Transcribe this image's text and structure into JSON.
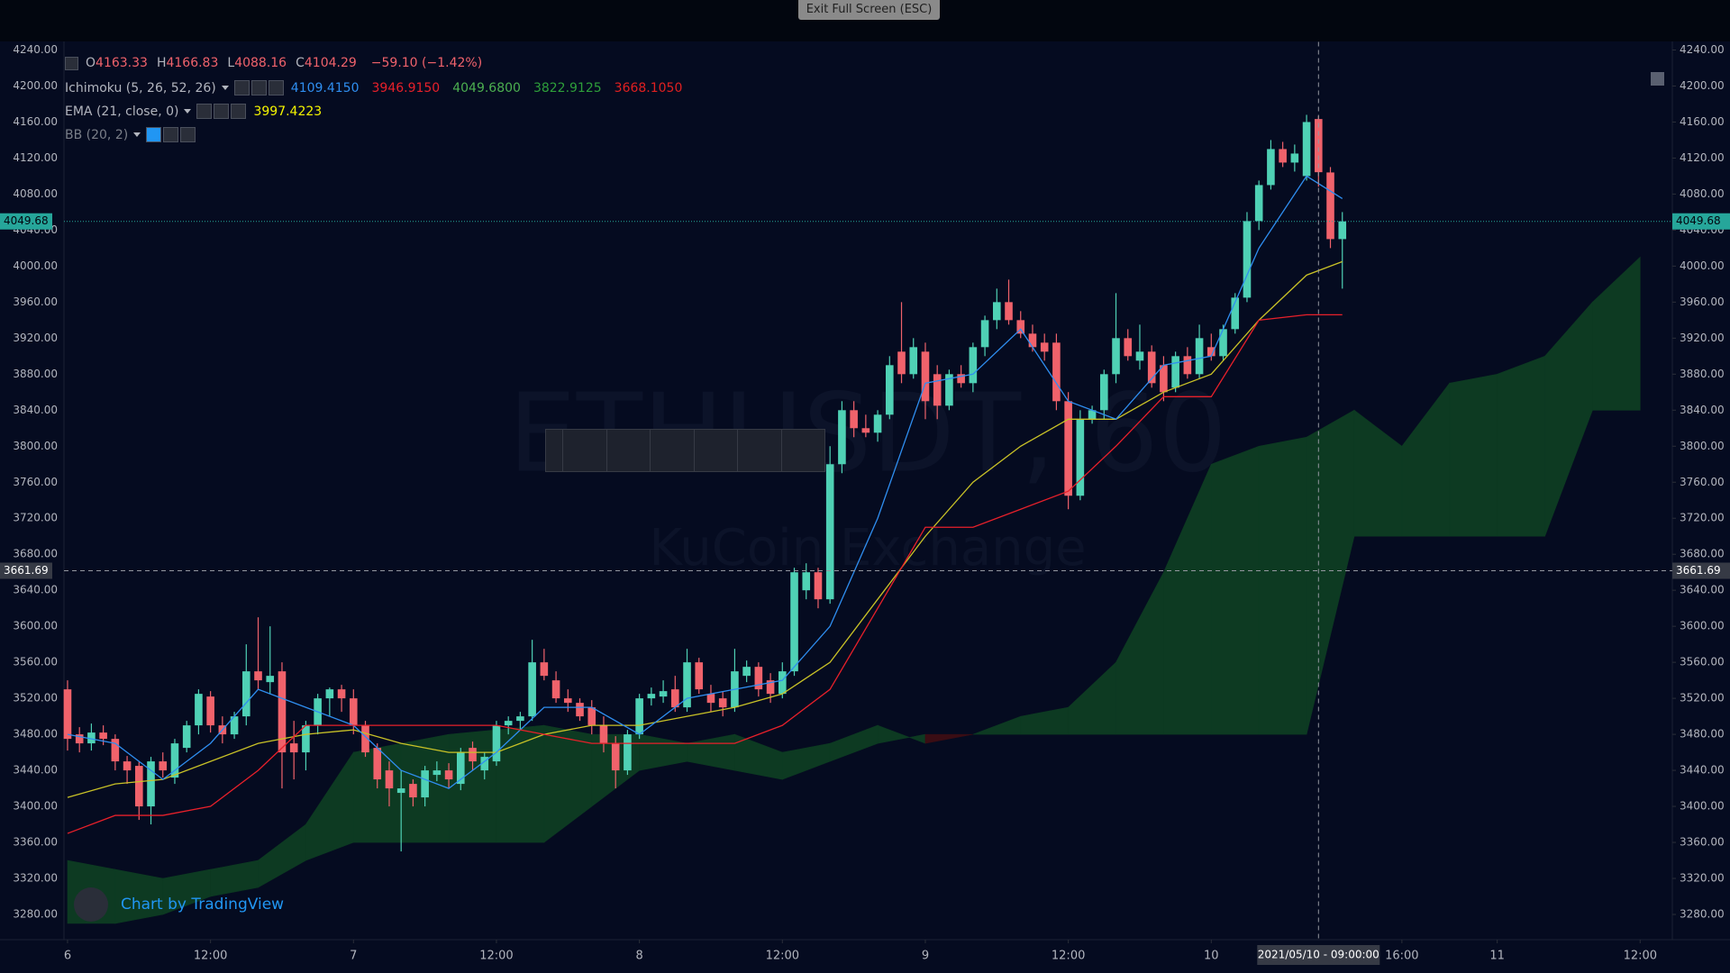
{
  "chart_data": {
    "type": "candlestick",
    "title": "ETHUSDT, 60",
    "subtitle": "KuCoin Exchange",
    "up_color": "#4fd1b5",
    "down_color": "#f0626b",
    "x": [
      0,
      1,
      2,
      3,
      4,
      5,
      6,
      7,
      8,
      9,
      10,
      11,
      12,
      13,
      14,
      15,
      16,
      17,
      18,
      19,
      20,
      21,
      22,
      23,
      24,
      25,
      26,
      27,
      28,
      29,
      30,
      31,
      32,
      33,
      34,
      35,
      36,
      37,
      38,
      39,
      40,
      41,
      42,
      43,
      44,
      45,
      46,
      47,
      48,
      49,
      50,
      51,
      52,
      53,
      54,
      55,
      56,
      57,
      58,
      59,
      60,
      61,
      62,
      63,
      64,
      65,
      66,
      67,
      68,
      69,
      70,
      71,
      72,
      73,
      74,
      75,
      76,
      77,
      78,
      79,
      80,
      81,
      82,
      83,
      84,
      85,
      86,
      87,
      88,
      89,
      90,
      91,
      92,
      93,
      94,
      95,
      96,
      97,
      98,
      99,
      100,
      101,
      102,
      103,
      104,
      105,
      106,
      107
    ],
    "ohlc": [
      [
        3530,
        3540,
        3462,
        3475
      ],
      [
        3480,
        3488,
        3460,
        3470
      ],
      [
        3470,
        3492,
        3462,
        3482
      ],
      [
        3482,
        3490,
        3468,
        3475
      ],
      [
        3475,
        3480,
        3440,
        3450
      ],
      [
        3450,
        3456,
        3425,
        3440
      ],
      [
        3445,
        3450,
        3385,
        3400
      ],
      [
        3400,
        3455,
        3380,
        3450
      ],
      [
        3450,
        3460,
        3432,
        3440
      ],
      [
        3432,
        3475,
        3425,
        3470
      ],
      [
        3465,
        3495,
        3460,
        3490
      ],
      [
        3490,
        3530,
        3480,
        3525
      ],
      [
        3522,
        3528,
        3482,
        3490
      ],
      [
        3490,
        3500,
        3470,
        3480
      ],
      [
        3480,
        3505,
        3475,
        3500
      ],
      [
        3500,
        3580,
        3490,
        3550
      ],
      [
        3550,
        3610,
        3530,
        3540
      ],
      [
        3538,
        3600,
        3525,
        3545
      ],
      [
        3550,
        3560,
        3420,
        3460
      ],
      [
        3470,
        3495,
        3430,
        3460
      ],
      [
        3460,
        3495,
        3440,
        3490
      ],
      [
        3490,
        3525,
        3480,
        3520
      ],
      [
        3520,
        3532,
        3500,
        3530
      ],
      [
        3530,
        3535,
        3505,
        3520
      ],
      [
        3520,
        3530,
        3480,
        3490
      ],
      [
        3490,
        3495,
        3455,
        3460
      ],
      [
        3465,
        3470,
        3420,
        3430
      ],
      [
        3440,
        3450,
        3400,
        3420
      ],
      [
        3415,
        3440,
        3350,
        3420
      ],
      [
        3425,
        3430,
        3400,
        3410
      ],
      [
        3410,
        3445,
        3400,
        3440
      ],
      [
        3435,
        3450,
        3428,
        3440
      ],
      [
        3440,
        3448,
        3420,
        3430
      ],
      [
        3425,
        3465,
        3418,
        3460
      ],
      [
        3465,
        3472,
        3440,
        3450
      ],
      [
        3440,
        3460,
        3430,
        3455
      ],
      [
        3450,
        3495,
        3445,
        3490
      ],
      [
        3490,
        3500,
        3480,
        3495
      ],
      [
        3495,
        3505,
        3485,
        3500
      ],
      [
        3500,
        3585,
        3495,
        3560
      ],
      [
        3560,
        3575,
        3540,
        3545
      ],
      [
        3540,
        3550,
        3515,
        3520
      ],
      [
        3520,
        3530,
        3505,
        3515
      ],
      [
        3515,
        3520,
        3495,
        3500
      ],
      [
        3510,
        3518,
        3480,
        3490
      ],
      [
        3490,
        3500,
        3460,
        3470
      ],
      [
        3470,
        3478,
        3420,
        3440
      ],
      [
        3440,
        3485,
        3435,
        3480
      ],
      [
        3480,
        3525,
        3475,
        3520
      ],
      [
        3520,
        3532,
        3512,
        3525
      ],
      [
        3522,
        3540,
        3515,
        3528
      ],
      [
        3530,
        3545,
        3505,
        3510
      ],
      [
        3510,
        3575,
        3505,
        3560
      ],
      [
        3560,
        3565,
        3525,
        3530
      ],
      [
        3525,
        3535,
        3505,
        3515
      ],
      [
        3520,
        3528,
        3500,
        3510
      ],
      [
        3510,
        3575,
        3505,
        3550
      ],
      [
        3545,
        3562,
        3538,
        3555
      ],
      [
        3555,
        3560,
        3522,
        3530
      ],
      [
        3540,
        3548,
        3515,
        3525
      ],
      [
        3525,
        3560,
        3520,
        3550
      ],
      [
        3550,
        3665,
        3545,
        3660
      ],
      [
        3640,
        3670,
        3630,
        3660
      ],
      [
        3660,
        3665,
        3620,
        3630
      ],
      [
        3630,
        3800,
        3625,
        3780
      ],
      [
        3780,
        3850,
        3770,
        3840
      ],
      [
        3840,
        3850,
        3810,
        3820
      ],
      [
        3820,
        3835,
        3810,
        3815
      ],
      [
        3815,
        3840,
        3805,
        3835
      ],
      [
        3835,
        3900,
        3830,
        3890
      ],
      [
        3905,
        3960,
        3870,
        3880
      ],
      [
        3880,
        3920,
        3875,
        3910
      ],
      [
        3905,
        3915,
        3830,
        3850
      ],
      [
        3880,
        3890,
        3830,
        3845
      ],
      [
        3845,
        3885,
        3840,
        3880
      ],
      [
        3880,
        3890,
        3865,
        3870
      ],
      [
        3870,
        3915,
        3860,
        3910
      ],
      [
        3910,
        3945,
        3900,
        3940
      ],
      [
        3940,
        3975,
        3930,
        3960
      ],
      [
        3960,
        3985,
        3935,
        3940
      ],
      [
        3940,
        3950,
        3920,
        3925
      ],
      [
        3925,
        3935,
        3905,
        3910
      ],
      [
        3915,
        3925,
        3895,
        3905
      ],
      [
        3915,
        3925,
        3840,
        3850
      ],
      [
        3850,
        3860,
        3730,
        3745
      ],
      [
        3745,
        3840,
        3740,
        3830
      ],
      [
        3830,
        3845,
        3825,
        3840
      ],
      [
        3840,
        3885,
        3830,
        3880
      ],
      [
        3880,
        3970,
        3870,
        3920
      ],
      [
        3920,
        3930,
        3895,
        3900
      ],
      [
        3895,
        3935,
        3885,
        3905
      ],
      [
        3905,
        3912,
        3865,
        3870
      ],
      [
        3890,
        3900,
        3850,
        3860
      ],
      [
        3865,
        3905,
        3860,
        3900
      ],
      [
        3900,
        3910,
        3875,
        3880
      ],
      [
        3880,
        3935,
        3875,
        3920
      ],
      [
        3910,
        3925,
        3895,
        3900
      ],
      [
        3900,
        3935,
        3895,
        3930
      ],
      [
        3930,
        3970,
        3925,
        3965
      ],
      [
        3965,
        4060,
        3960,
        4050
      ],
      [
        4050,
        4095,
        4040,
        4090
      ],
      [
        4090,
        4140,
        4085,
        4130
      ],
      [
        4130,
        4138,
        4110,
        4115
      ],
      [
        4115,
        4135,
        4105,
        4125
      ],
      [
        4100,
        4168,
        4095,
        4160
      ],
      [
        4163.33,
        4166.83,
        4088.16,
        4104.29
      ],
      [
        4104,
        4110,
        4020,
        4030
      ],
      [
        4030,
        4060,
        3975,
        4049.68
      ]
    ],
    "lines": {
      "x": [
        0,
        4,
        8,
        12,
        16,
        20,
        24,
        28,
        32,
        36,
        40,
        44,
        48,
        52,
        56,
        60,
        64,
        68,
        72,
        76,
        80,
        84,
        88,
        92,
        96,
        100,
        104,
        107
      ],
      "series": [
        {
          "color": "#c9c227",
          "values": [
            3410,
            3425,
            3430,
            3450,
            3470,
            3480,
            3485,
            3470,
            3460,
            3460,
            3480,
            3490,
            3490,
            3500,
            3510,
            3525,
            3560,
            3630,
            3700,
            3760,
            3800,
            3830,
            3830,
            3860,
            3880,
            3940,
            3990,
            4005
          ]
        },
        {
          "color": "#2f8ef0",
          "values": [
            3480,
            3470,
            3430,
            3470,
            3530,
            3510,
            3490,
            3440,
            3420,
            3460,
            3510,
            3510,
            3480,
            3520,
            3530,
            3540,
            3600,
            3720,
            3870,
            3880,
            3930,
            3850,
            3830,
            3890,
            3900,
            4020,
            4100,
            4075
          ]
        },
        {
          "color": "#e8202a",
          "values": [
            3370,
            3390,
            3390,
            3400,
            3440,
            3490,
            3490,
            3490,
            3490,
            3490,
            3480,
            3470,
            3470,
            3470,
            3470,
            3490,
            3530,
            3620,
            3710,
            3710,
            3730,
            3750,
            3800,
            3855,
            3855,
            3940,
            3946,
            3946
          ]
        }
      ]
    },
    "cloud": {
      "x": [
        0,
        4,
        8,
        12,
        16,
        20,
        24,
        28,
        32,
        36,
        40,
        44,
        48,
        52,
        56,
        60,
        64,
        68,
        72,
        76,
        80,
        84,
        88,
        92,
        96,
        100,
        104,
        108,
        112,
        116,
        120,
        124,
        128,
        132
      ],
      "up_color": "#0d3a22",
      "down_color": "#3a0d14",
      "span_a": [
        3340,
        3330,
        3320,
        3330,
        3340,
        3380,
        3460,
        3470,
        3480,
        3485,
        3490,
        3480,
        3480,
        3470,
        3480,
        3460,
        3470,
        3490,
        3470,
        3480,
        3500,
        3510,
        3560,
        3660,
        3780,
        3800,
        3810,
        3840,
        3800,
        3870,
        3880,
        3900,
        3960,
        4010
      ],
      "span_b": [
        3270,
        3270,
        3280,
        3300,
        3310,
        3340,
        3360,
        3360,
        3360,
        3360,
        3360,
        3400,
        3440,
        3450,
        3440,
        3430,
        3450,
        3470,
        3480,
        3480,
        3480,
        3480,
        3480,
        3480,
        3480,
        3480,
        3480,
        3700,
        3700,
        3700,
        3700,
        3700,
        3840,
        3840
      ]
    },
    "xlim": [
      -0.3,
      134.7
    ],
    "xticks": [
      {
        "value": 0,
        "label": "6"
      },
      {
        "value": 12,
        "label": "12:00"
      },
      {
        "value": 24,
        "label": "7"
      },
      {
        "value": 36,
        "label": "12:00"
      },
      {
        "value": 48,
        "label": "8"
      },
      {
        "value": 60,
        "label": "12:00"
      },
      {
        "value": 72,
        "label": "9"
      },
      {
        "value": 84,
        "label": "12:00"
      },
      {
        "value": 96,
        "label": "10"
      },
      {
        "value": 112,
        "label": "16:00"
      },
      {
        "value": 120,
        "label": "11"
      },
      {
        "value": 132,
        "label": "12:00"
      }
    ],
    "ylim": [
      3252,
      4249
    ],
    "yticks": [
      {
        "value": 3280,
        "label": "3280.00"
      },
      {
        "value": 3320,
        "label": "3320.00"
      },
      {
        "value": 3360,
        "label": "3360.00"
      },
      {
        "value": 3400,
        "label": "3400.00"
      },
      {
        "value": 3440,
        "label": "3440.00"
      },
      {
        "value": 3480,
        "label": "3480.00"
      },
      {
        "value": 3520,
        "label": "3520.00"
      },
      {
        "value": 3560,
        "label": "3560.00"
      },
      {
        "value": 3600,
        "label": "3600.00"
      },
      {
        "value": 3640,
        "label": "3640.00"
      },
      {
        "value": 3680,
        "label": "3680.00"
      },
      {
        "value": 3720,
        "label": "3720.00"
      },
      {
        "value": 3760,
        "label": "3760.00"
      },
      {
        "value": 3800,
        "label": "3800.00"
      },
      {
        "value": 3840,
        "label": "3840.00"
      },
      {
        "value": 3880,
        "label": "3880.00"
      },
      {
        "value": 3920,
        "label": "3920.00"
      },
      {
        "value": 3960,
        "label": "3960.00"
      },
      {
        "value": 4000,
        "label": "4000.00"
      },
      {
        "value": 4040,
        "label": "4040.00"
      },
      {
        "value": 4080,
        "label": "4080.00"
      },
      {
        "value": 4120,
        "label": "4120.00"
      },
      {
        "value": 4160,
        "label": "4160.00"
      },
      {
        "value": 4200,
        "label": "4200.00"
      },
      {
        "value": 4240,
        "label": "4240.00"
      }
    ],
    "grid": false,
    "last_price": 4049.68,
    "last_price_color": "#26a69a",
    "crosshair": {
      "x": 105,
      "price": 3661.69,
      "time_label": "2021/05/10 - 09:00:00"
    }
  },
  "legend": {
    "ohlc_labels": [
      "O",
      "H",
      "L",
      "C"
    ],
    "ohlc_index": 105,
    "change": "−59.10 (−1.42%)",
    "indicators": [
      {
        "label": "Ichimoku (5, 26, 52, 26)",
        "values": [
          {
            "text": "4109.4150",
            "color": "#2f8ef0"
          },
          {
            "text": "3946.9150",
            "color": "#e8202a"
          },
          {
            "text": "4049.6800",
            "color": "#4caf50"
          },
          {
            "text": "3822.9125",
            "color": "#2e9f3a"
          },
          {
            "text": "3668.1050",
            "color": "#e02020"
          }
        ]
      },
      {
        "label": "EMA (21, close, 0)",
        "values": [
          {
            "text": "3997.4223",
            "color": "#f5f500"
          }
        ]
      },
      {
        "label": "BB (20, 2)",
        "values": []
      }
    ]
  },
  "ui": {
    "exit_button": "Exit Full Screen (ESC)",
    "branding": "Chart by TradingView"
  }
}
